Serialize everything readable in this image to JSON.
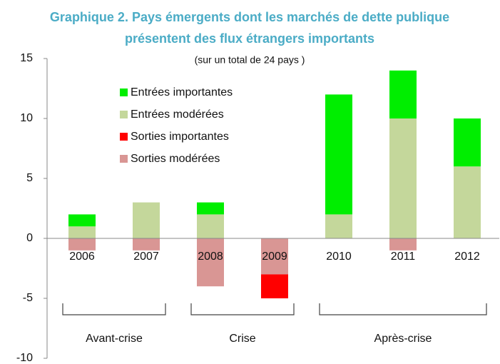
{
  "chart_data": {
    "type": "stacked_bar",
    "title": [
      "Graphique 2. Pays émergents dont les marchés de dette publique",
      "présentent des flux étrangers importants"
    ],
    "subtitle": "(sur un total de 24 pays )",
    "categories": [
      "2006",
      "2007",
      "2008",
      "2009",
      "2010",
      "2011",
      "2012"
    ],
    "series": [
      {
        "name": "Entrées importantes",
        "color": "#00ee00",
        "values": [
          1,
          0,
          1,
          0,
          10,
          4,
          4
        ]
      },
      {
        "name": "Entrées modérées",
        "color": "#c4d79b",
        "values": [
          1,
          3,
          2,
          0,
          2,
          10,
          6
        ]
      },
      {
        "name": "Sorties importantes",
        "color": "#ff0000",
        "values": [
          0,
          0,
          0,
          -2,
          0,
          0,
          0
        ]
      },
      {
        "name": "Sorties modérées",
        "color": "#d99694",
        "values": [
          -1,
          -1,
          -4,
          -3,
          0,
          -1,
          0
        ]
      }
    ],
    "groups": [
      {
        "label": "Avant-crise",
        "members": [
          "2006",
          "2007"
        ]
      },
      {
        "label": "Crise",
        "members": [
          "2008",
          "2009"
        ]
      },
      {
        "label": "Après-crise",
        "members": [
          "2010",
          "2011",
          "2012"
        ]
      }
    ],
    "ylim": [
      -10,
      15
    ],
    "yticks": [
      -10,
      -5,
      0,
      5,
      10,
      15
    ],
    "legend": "upper-left"
  }
}
